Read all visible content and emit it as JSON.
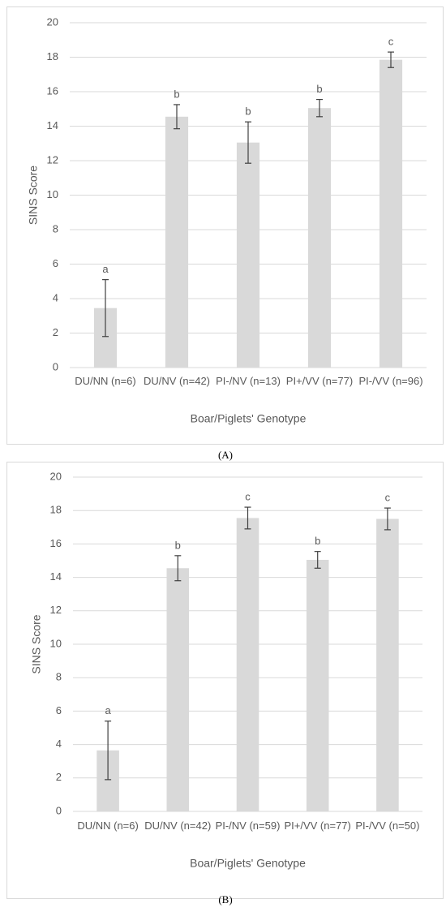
{
  "chart_data": [
    {
      "type": "bar",
      "panel_label": "(A)",
      "ylabel": "SINS Score",
      "xlabel": "Boar/Piglets' Genotype",
      "categories": [
        "DU/NN (n=6)",
        "DU/NV (n=42)",
        "PI-/NV (n=13)",
        "PI+/VV (n=77)",
        "PI-/VV (n=96)"
      ],
      "values": [
        3.45,
        14.55,
        13.05,
        15.05,
        17.85
      ],
      "errors": [
        1.65,
        0.7,
        1.2,
        0.5,
        0.45
      ],
      "annotations": [
        "a",
        "b",
        "b",
        "b",
        "c"
      ],
      "color": "#d9d9d9",
      "ylim": [
        0,
        20
      ],
      "yticks": [
        0,
        2,
        4,
        6,
        8,
        10,
        12,
        14,
        16,
        18,
        20
      ],
      "grid": true
    },
    {
      "type": "bar",
      "panel_label": "(B)",
      "ylabel": "SINS Score",
      "xlabel": "Boar/Piglets' Genotype",
      "categories": [
        "DU/NN (n=6)",
        "DU/NV (n=42)",
        "PI-/NV (n=59)",
        "PI+/VV (n=77)",
        "PI-/VV (n=50)"
      ],
      "values": [
        3.65,
        14.55,
        17.55,
        15.05,
        17.5
      ],
      "errors": [
        1.75,
        0.75,
        0.65,
        0.5,
        0.65
      ],
      "annotations": [
        "a",
        "b",
        "c",
        "b",
        "c"
      ],
      "color": "#d9d9d9",
      "ylim": [
        0,
        20
      ],
      "yticks": [
        0,
        2,
        4,
        6,
        8,
        10,
        12,
        14,
        16,
        18,
        20
      ],
      "grid": true
    }
  ]
}
